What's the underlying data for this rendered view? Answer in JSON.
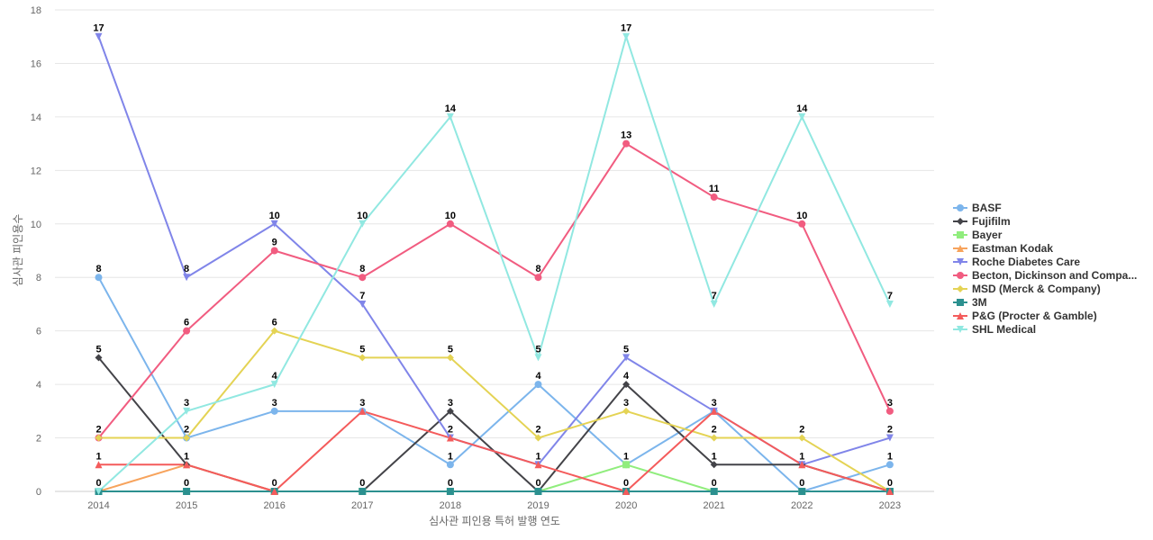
{
  "chart_data": {
    "type": "line",
    "xlabel": "심사관 피인용 특허 발행 연도",
    "ylabel": "심사관 피인용수",
    "ylim": [
      0,
      18
    ],
    "yticks": [
      0,
      2,
      4,
      6,
      8,
      10,
      12,
      14,
      16,
      18
    ],
    "grid": true,
    "legend_position": "right",
    "categories": [
      "2014",
      "2015",
      "2016",
      "2017",
      "2018",
      "2019",
      "2020",
      "2021",
      "2022",
      "2023"
    ],
    "series": [
      {
        "name": "BASF",
        "color": "#7cb5ec",
        "marker": "circle",
        "values": [
          8,
          2,
          3,
          3,
          1,
          4,
          1,
          3,
          0,
          1
        ]
      },
      {
        "name": "Fujifilm",
        "color": "#434348",
        "marker": "diamond",
        "values": [
          5,
          1,
          0,
          0,
          3,
          0,
          4,
          1,
          1,
          0
        ]
      },
      {
        "name": "Bayer",
        "color": "#90ed7d",
        "marker": "square",
        "values": [
          0,
          0,
          0,
          0,
          0,
          0,
          1,
          0,
          0,
          0
        ]
      },
      {
        "name": "Eastman Kodak",
        "color": "#f7a35c",
        "marker": "triangle",
        "values": [
          0,
          1,
          0,
          0,
          0,
          0,
          0,
          0,
          0,
          0
        ]
      },
      {
        "name": "Roche Diabetes Care",
        "color": "#8085e9",
        "marker": "triangle-down",
        "values": [
          17,
          8,
          10,
          7,
          2,
          1,
          5,
          3,
          1,
          2
        ]
      },
      {
        "name": "Becton, Dickinson and Compa...",
        "color": "#f15c80",
        "marker": "circle",
        "values": [
          2,
          6,
          9,
          8,
          10,
          8,
          13,
          11,
          10,
          3
        ]
      },
      {
        "name": "MSD (Merck & Company)",
        "color": "#e4d354",
        "marker": "diamond",
        "values": [
          2,
          2,
          6,
          5,
          5,
          2,
          3,
          2,
          2,
          0
        ]
      },
      {
        "name": "3M",
        "color": "#2b908f",
        "marker": "square",
        "values": [
          0,
          0,
          0,
          0,
          0,
          0,
          0,
          0,
          0,
          0
        ]
      },
      {
        "name": "P&G (Procter & Gamble)",
        "color": "#f45b5b",
        "marker": "triangle",
        "values": [
          1,
          1,
          0,
          3,
          2,
          1,
          0,
          3,
          1,
          0
        ]
      },
      {
        "name": "SHL Medical",
        "color": "#91e8e1",
        "marker": "triangle-down",
        "values": [
          0,
          3,
          4,
          10,
          14,
          5,
          17,
          7,
          14,
          7
        ]
      }
    ],
    "data_labels": {
      "2014": [
        "17",
        "8",
        "5",
        "2",
        "1",
        "0"
      ],
      "2015": [
        "8",
        "6",
        "3",
        "2",
        "1",
        "0"
      ],
      "2016": [
        "10",
        "9",
        "6",
        "4",
        "3",
        "0"
      ],
      "2017": [
        "10",
        "8",
        "7",
        "5",
        "3",
        "0"
      ],
      "2018": [
        "14",
        "10",
        "5",
        "3",
        "2",
        "1",
        "0"
      ],
      "2019": [
        "8",
        "5",
        "4",
        "2",
        "1",
        "0"
      ],
      "2020": [
        "17",
        "13",
        "5",
        "4",
        "3",
        "1",
        "0"
      ],
      "2021": [
        "11",
        "7",
        "3",
        "2",
        "1",
        "0"
      ],
      "2022": [
        "14",
        "10",
        "2",
        "1",
        "0"
      ],
      "2023": [
        "7",
        "3",
        "2",
        "1",
        "0"
      ]
    }
  }
}
